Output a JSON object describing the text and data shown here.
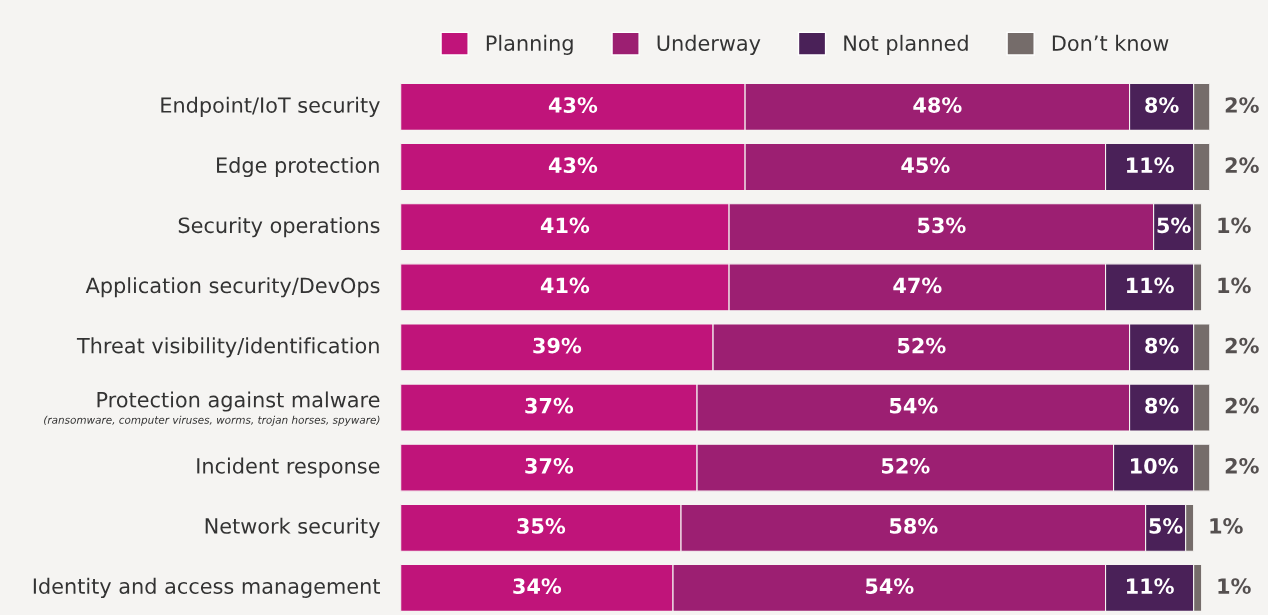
{
  "chart_data": {
    "type": "bar",
    "orientation": "horizontal",
    "stacked": true,
    "legend": "top",
    "grid": false,
    "tick_labels": "y",
    "categories": [
      "Endpoint/IoT security",
      "Edge protection",
      "Security operations",
      "Application security/DevOps",
      "Threat visibility/identification",
      "Protection against malware\n(ransomware, computer viruses, worms, trojan horses, spyware)",
      "Incident response",
      "Network security",
      "Identity and access management"
    ],
    "series": [
      {
        "name": "Planning",
        "color": "#c0147a",
        "values": [
          43,
          43,
          41,
          41,
          39,
          37,
          37,
          35,
          34
        ],
        "value_labels": [
          "43%",
          "43%",
          "41%",
          "41%",
          "39%",
          "37%",
          "37%",
          "35%",
          "34%"
        ]
      },
      {
        "name": "Underway",
        "color": "#9c1f72",
        "values": [
          48,
          45,
          53,
          47,
          52,
          54,
          52,
          58,
          54
        ],
        "value_labels": [
          "48%",
          "45%",
          "53%",
          "47%",
          "52%",
          "54%",
          "52%",
          "58%",
          "54%"
        ]
      },
      {
        "name": "Not planned",
        "color": "#4a2158",
        "values": [
          8,
          11,
          5,
          11,
          8,
          8,
          10,
          5,
          11
        ],
        "value_labels": [
          "8%",
          "11%",
          "5%",
          "11%",
          "8%",
          "8%",
          "10%",
          "5%",
          "11%"
        ]
      },
      {
        "name": "Don’t know",
        "color": "#756c6a",
        "values": [
          2,
          2,
          1,
          1,
          2,
          2,
          2,
          1,
          1
        ],
        "value_labels": [
          "2%",
          "2%",
          "1%",
          "1%",
          "2%",
          "2%",
          "2%",
          "1%",
          "1%"
        ]
      }
    ]
  }
}
